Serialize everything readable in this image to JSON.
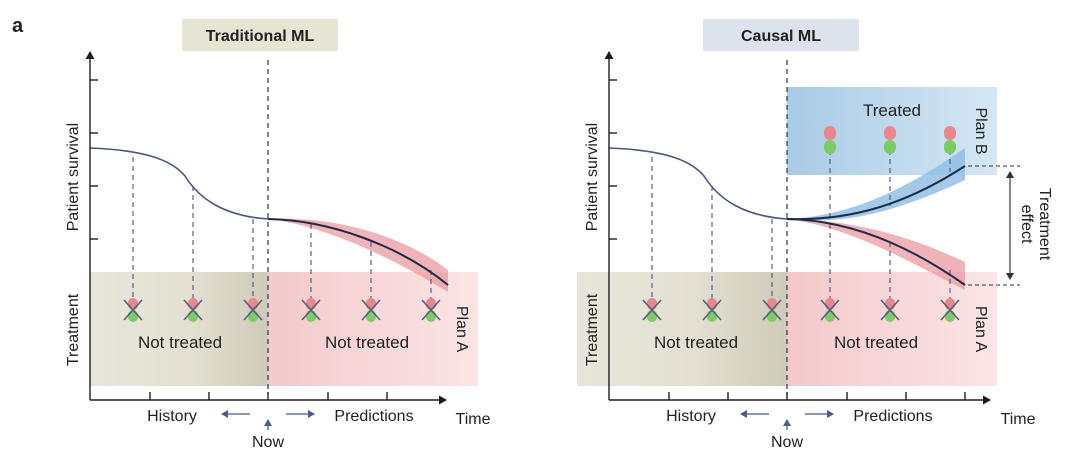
{
  "figure": {
    "panel_label": "a",
    "colors": {
      "axis": "#1e1e1e",
      "curve": "#2b3550",
      "history_zone": "#e9e6db",
      "future_zone": "#f7d6d6",
      "treated_zone": "#bcd8ed",
      "red_band": "#e9a0a3",
      "blue_band": "#8fc0e3",
      "arrow": "#4a5a8a",
      "pill_red": "#e9858c",
      "pill_green": "#7dcc66"
    }
  },
  "left_panel": {
    "title": "Traditional ML",
    "y_label_top": "Patient survival",
    "y_label_bottom": "Treatment",
    "history_text": "Not treated",
    "future_text": "Not treated",
    "plan_label": "Plan A",
    "x_history": "History",
    "x_predictions": "Predictions",
    "x_time": "Time",
    "x_now": "Now"
  },
  "right_panel": {
    "title": "Causal ML",
    "y_label_top": "Patient survival",
    "y_label_bottom": "Treatment",
    "history_text": "Not treated",
    "future_text": "Not treated",
    "treated_text": "Treated",
    "plan_a_label": "Plan A",
    "plan_b_label": "Plan B",
    "effect_line1": "Treatment",
    "effect_line2": "effect",
    "x_history": "History",
    "x_predictions": "Predictions",
    "x_time": "Time",
    "x_now": "Now"
  }
}
